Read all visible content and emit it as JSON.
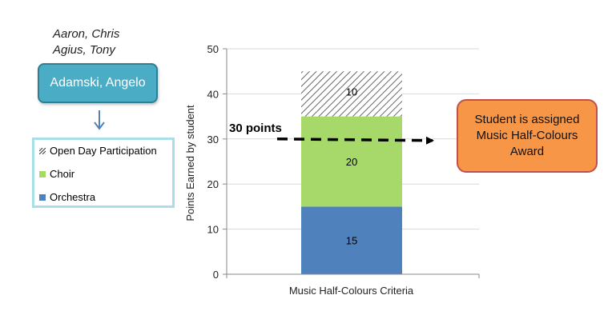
{
  "names_list": [
    "Aaron, Chris",
    "Agius, Tony"
  ],
  "student_name": "Adamski, Angelo",
  "award_text": "Student is assigned Music Half-Colours Award",
  "threshold_label": "30 points",
  "colors": {
    "orchestra": "#4f81bd",
    "choir": "#a6d96a",
    "open_day_hatch": "#555555",
    "student_box": "#4bacc6",
    "award_box": "#f79646"
  },
  "chart_data": {
    "type": "bar",
    "stacked": true,
    "categories": [
      "Music Half-Colours Criteria"
    ],
    "series": [
      {
        "name": "Orchestra",
        "values": [
          15
        ],
        "color": "#4f81bd"
      },
      {
        "name": "Choir",
        "values": [
          20
        ],
        "color": "#a6d96a"
      },
      {
        "name": "Open Day Participation",
        "values": [
          10
        ],
        "pattern": "hatch"
      }
    ],
    "data_labels": [
      "15",
      "20",
      "10"
    ],
    "ylabel": "Points Earned by student",
    "xlabel": "",
    "ylim": [
      0,
      50
    ],
    "yticks": [
      0,
      10,
      20,
      30,
      40,
      50
    ],
    "threshold": 30,
    "legend": [
      "Open Day Participation",
      "Choir",
      "Orchestra"
    ],
    "grid": "horizontal"
  }
}
